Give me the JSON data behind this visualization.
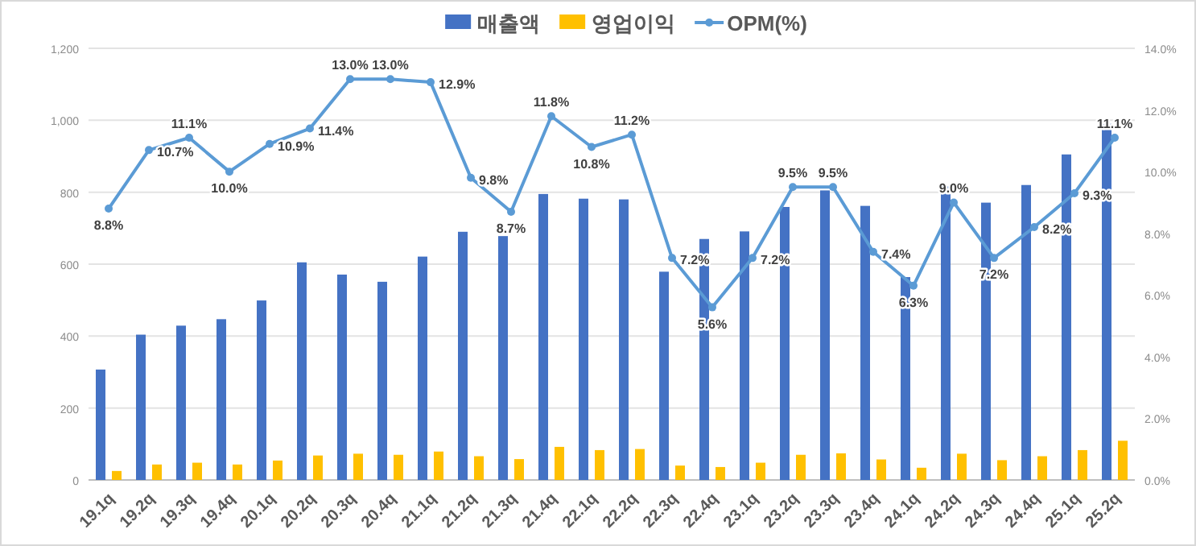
{
  "chart_data": {
    "type": "bar",
    "categories": [
      "19.1q",
      "19.2q",
      "19.3q",
      "19.4q",
      "20.1q",
      "20.2q",
      "20.3q",
      "20.4q",
      "21.1q",
      "21.2q",
      "21.3q",
      "21.4q",
      "22.1q",
      "22.2q",
      "22.3q",
      "22.4q",
      "23.1q",
      "23.2q",
      "23.3q",
      "23.4q",
      "24.1q",
      "24.2q",
      "24.3q",
      "24.4q",
      "25.1q",
      "25.2q"
    ],
    "series": [
      {
        "name": "매출액",
        "color": "#4472c4",
        "values": [
          307,
          404,
          429,
          447,
          499,
          605,
          571,
          551,
          621,
          690,
          678,
          795,
          782,
          780,
          579,
          670,
          691,
          759,
          805,
          762,
          564,
          816,
          771,
          820,
          905,
          990
        ]
      },
      {
        "name": "영업이익",
        "color": "#ffc000",
        "values": [
          25,
          43,
          48,
          43,
          54,
          68,
          73,
          70,
          79,
          66,
          58,
          92,
          83,
          86,
          40,
          36,
          48,
          70,
          74,
          57,
          34,
          73,
          55,
          66,
          83,
          109
        ]
      },
      {
        "name": "OPM(%)",
        "type": "line",
        "axis": "y2",
        "color": "#5b9bd5",
        "marker": "circle",
        "values": [
          8.8,
          10.7,
          11.1,
          10.0,
          10.9,
          11.4,
          13.0,
          13.0,
          12.9,
          9.8,
          8.7,
          11.8,
          10.8,
          11.2,
          7.2,
          5.6,
          7.2,
          9.5,
          9.5,
          7.4,
          6.3,
          9.0,
          7.2,
          8.2,
          9.3,
          11.1
        ],
        "value_labels": [
          "8.8%",
          "10.7%",
          "11.1%",
          "10.0%",
          "10.9%",
          "11.4%",
          "13.0%",
          "13.0%",
          "12.9%",
          "9.8%",
          "8.7%",
          "11.8%",
          "10.8%",
          "11.2%",
          "7.2%",
          "5.6%",
          "7.2%",
          "9.5%",
          "9.5%",
          "7.4%",
          "6.3%",
          "9.0%",
          "7.2%",
          "8.2%",
          "9.3%",
          "11.1%"
        ]
      }
    ],
    "ylim": [
      0,
      1200
    ],
    "yticks": [
      0,
      200,
      400,
      600,
      800,
      {
        "value": 1000,
        "label": "1,000"
      },
      {
        "value": 1200,
        "label": "1,200"
      }
    ],
    "y2lim": [
      0,
      14
    ],
    "y2ticks": [
      {
        "value": 0,
        "label": "0.0%"
      },
      {
        "value": 2,
        "label": "2.0%"
      },
      {
        "value": 4,
        "label": "4.0%"
      },
      {
        "value": 6,
        "label": "6.0%"
      },
      {
        "value": 8,
        "label": "8.0%"
      },
      {
        "value": 10,
        "label": "10.0%"
      },
      {
        "value": 12,
        "label": "12.0%"
      },
      {
        "value": 14,
        "label": "14.0%"
      }
    ],
    "grid": "y",
    "legend": "top"
  }
}
